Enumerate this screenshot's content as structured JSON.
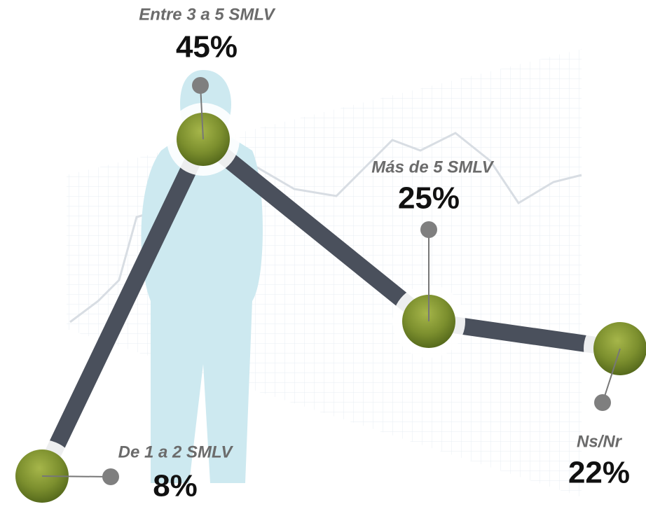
{
  "chart_data": {
    "type": "line",
    "categories": [
      "De 1 a 2 SMLV",
      "Entre 3 a 5 SMLV",
      "Más de 5 SMLV",
      "Ns/Nr"
    ],
    "values": [
      8,
      45,
      25,
      22
    ],
    "value_labels": [
      "8%",
      "45%",
      "25%",
      "22%"
    ],
    "color": "#4a505c"
  }
}
